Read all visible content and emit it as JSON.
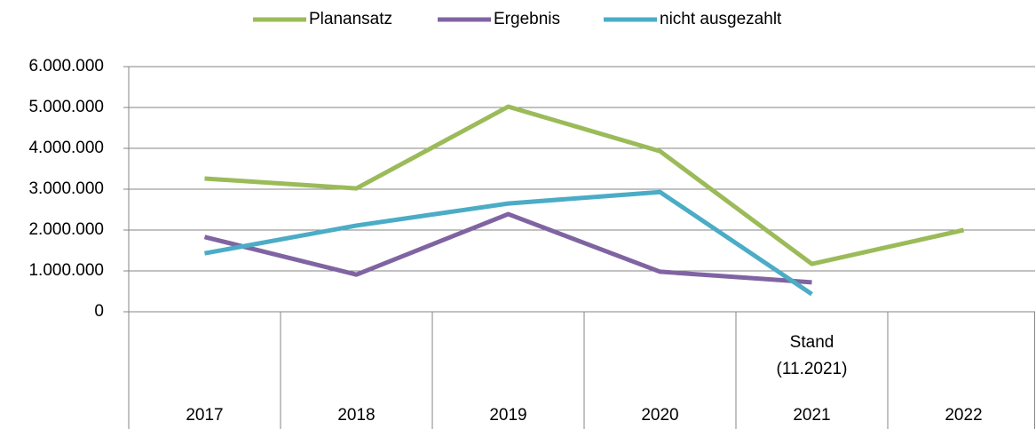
{
  "chart_data": {
    "type": "line",
    "categories": [
      "2017",
      "2018",
      "2019",
      "2020",
      "2021",
      "2022"
    ],
    "annotations": [
      "Stand",
      "(11.2021)"
    ],
    "series": [
      {
        "name": "Planansatz",
        "color": "#9bbb59",
        "values": [
          3260000,
          3020000,
          5020000,
          3930000,
          1170000,
          2000000
        ]
      },
      {
        "name": "Ergebnis",
        "color": "#8064a2",
        "values": [
          1830000,
          910000,
          2390000,
          980000,
          720000,
          null
        ]
      },
      {
        "name": "nicht ausgezahlt",
        "color": "#4bacc6",
        "values": [
          1430000,
          2110000,
          2650000,
          2930000,
          430000,
          null
        ]
      }
    ],
    "ylim": [
      0,
      6000000
    ],
    "yticks": [
      0,
      {
        "value": 1000000,
        "label": "1.000.000"
      },
      {
        "value": 2000000,
        "label": "2.000.000"
      },
      {
        "value": 3000000,
        "label": "3.000.000"
      },
      {
        "value": 4000000,
        "label": "4.000.000"
      },
      {
        "value": 5000000,
        "label": "5.000.000"
      },
      {
        "value": 6000000,
        "label": "6.000.000"
      }
    ],
    "grid": true,
    "legend": "top"
  }
}
